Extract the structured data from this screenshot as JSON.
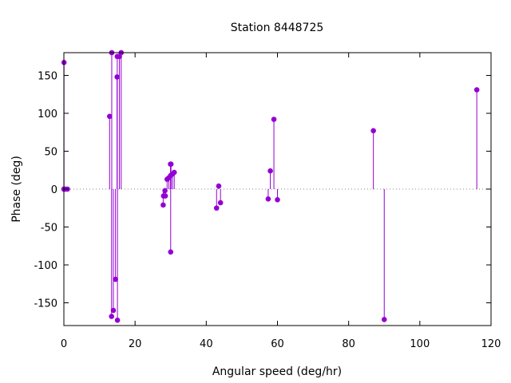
{
  "chart_data": {
    "type": "scatter",
    "style": "impulses-with-points",
    "title": "Station 8448725",
    "xlabel": "Angular speed (deg/hr)",
    "ylabel": "Phase (deg)",
    "xlim": [
      0,
      120
    ],
    "ylim": [
      -180,
      180
    ],
    "xticks": [
      0,
      20,
      40,
      60,
      80,
      100,
      120
    ],
    "yticks": [
      -150,
      -100,
      -50,
      0,
      50,
      100,
      150
    ],
    "grid": false,
    "zero_line": "dotted",
    "series_color": "#9400D3",
    "points": [
      {
        "x": 0.0,
        "y": 0
      },
      {
        "x": 0.04,
        "y": 167
      },
      {
        "x": 0.08,
        "y": 0
      },
      {
        "x": 0.5,
        "y": 0
      },
      {
        "x": 1.0,
        "y": 0
      },
      {
        "x": 12.85,
        "y": 96
      },
      {
        "x": 13.4,
        "y": -168
      },
      {
        "x": 13.45,
        "y": 180
      },
      {
        "x": 13.9,
        "y": -160
      },
      {
        "x": 14.5,
        "y": -119
      },
      {
        "x": 14.95,
        "y": 148
      },
      {
        "x": 15.0,
        "y": 175
      },
      {
        "x": 15.05,
        "y": -173
      },
      {
        "x": 15.6,
        "y": 175
      },
      {
        "x": 16.1,
        "y": 180
      },
      {
        "x": 27.9,
        "y": -21
      },
      {
        "x": 28.0,
        "y": -9
      },
      {
        "x": 28.4,
        "y": -2
      },
      {
        "x": 28.5,
        "y": -9
      },
      {
        "x": 29.0,
        "y": 13
      },
      {
        "x": 29.5,
        "y": 15
      },
      {
        "x": 29.95,
        "y": 33
      },
      {
        "x": 30.0,
        "y": 18
      },
      {
        "x": 30.0,
        "y": -83
      },
      {
        "x": 30.1,
        "y": 33
      },
      {
        "x": 30.5,
        "y": 20
      },
      {
        "x": 31.0,
        "y": 22
      },
      {
        "x": 42.9,
        "y": -25
      },
      {
        "x": 43.5,
        "y": 4
      },
      {
        "x": 44.0,
        "y": -18
      },
      {
        "x": 57.4,
        "y": -13
      },
      {
        "x": 58.0,
        "y": 24
      },
      {
        "x": 59.0,
        "y": 92
      },
      {
        "x": 60.0,
        "y": -14
      },
      {
        "x": 86.95,
        "y": 77
      },
      {
        "x": 90.0,
        "y": -172
      },
      {
        "x": 116.0,
        "y": 131
      }
    ]
  }
}
